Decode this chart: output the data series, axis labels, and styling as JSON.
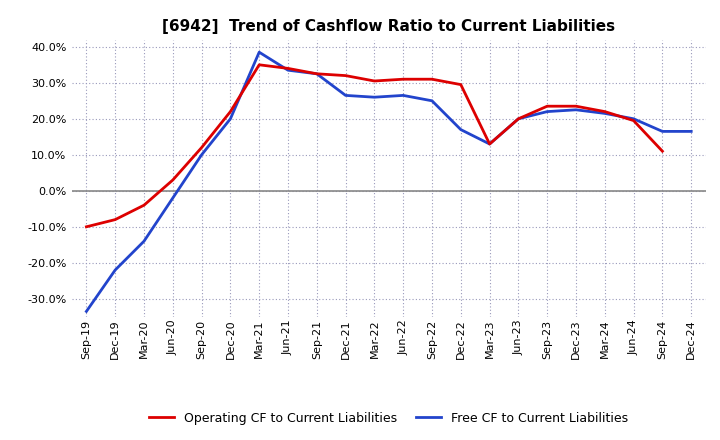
{
  "title": "[6942]  Trend of Cashflow Ratio to Current Liabilities",
  "x_labels": [
    "Sep-19",
    "Dec-19",
    "Mar-20",
    "Jun-20",
    "Sep-20",
    "Dec-20",
    "Mar-21",
    "Jun-21",
    "Sep-21",
    "Dec-21",
    "Mar-22",
    "Jun-22",
    "Sep-22",
    "Dec-22",
    "Mar-23",
    "Jun-23",
    "Sep-23",
    "Dec-23",
    "Mar-24",
    "Jun-24",
    "Sep-24",
    "Dec-24"
  ],
  "operating_cf": [
    -10.0,
    -8.0,
    -4.0,
    3.0,
    12.0,
    22.0,
    35.0,
    34.0,
    32.5,
    32.0,
    30.5,
    31.0,
    31.0,
    29.5,
    13.0,
    20.0,
    23.5,
    23.5,
    22.0,
    19.5,
    11.0,
    null
  ],
  "free_cf": [
    -33.5,
    -22.0,
    -14.0,
    -2.0,
    10.0,
    20.0,
    38.5,
    33.5,
    32.5,
    26.5,
    26.0,
    26.5,
    25.0,
    17.0,
    13.0,
    20.0,
    22.0,
    22.5,
    21.5,
    20.0,
    16.5,
    16.5
  ],
  "operating_color": "#dd0000",
  "free_color": "#2244cc",
  "ylim": [
    -35,
    42
  ],
  "yticks": [
    -30,
    -20,
    -10,
    0,
    10,
    20,
    30,
    40
  ],
  "background_color": "#ffffff",
  "plot_bg_color": "#ffffff",
  "grid_color": "#9999bb",
  "zero_line_color": "#888888",
  "legend_op": "Operating CF to Current Liabilities",
  "legend_free": "Free CF to Current Liabilities",
  "title_fontsize": 11,
  "tick_fontsize": 8,
  "line_width": 2.0
}
